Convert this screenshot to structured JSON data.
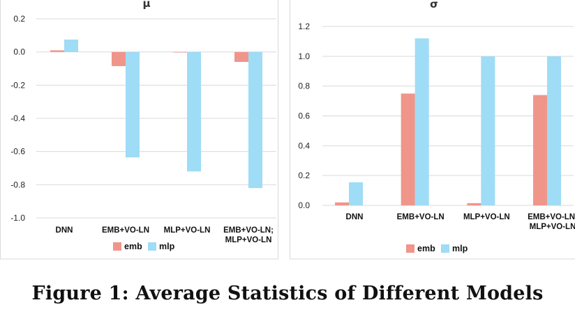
{
  "caption": "Figure 1: Average Statistics of Different Models",
  "colors": {
    "emb": "#f0958a",
    "mlp": "#9fdcf6"
  },
  "chart_data": [
    {
      "type": "bar",
      "title": "μ",
      "categories": [
        "DNN",
        "EMB+VO-LN",
        "MLP+VO-LN",
        "EMB+VO-LN;\nMLP+VO-LN"
      ],
      "series": [
        {
          "name": "emb",
          "values": [
            0.01,
            -0.085,
            0.0,
            -0.06
          ]
        },
        {
          "name": "mlp",
          "values": [
            0.075,
            -0.635,
            -0.72,
            -0.82
          ]
        }
      ],
      "ylim": [
        -1.0,
        0.2
      ],
      "yticks": [
        0.2,
        0.0,
        -0.2,
        -0.4,
        -0.6,
        -0.8,
        -1.0
      ],
      "ytick_labels": [
        "0.2",
        "0.0",
        "-0.2",
        "-0.4",
        "-0.6",
        "-0.8",
        "-1.0"
      ],
      "grid": true,
      "legend": "bottom"
    },
    {
      "type": "bar",
      "title": "σ",
      "categories": [
        "DNN",
        "EMB+VO-LN",
        "MLP+VO-LN",
        "EMB+VO-LN;\nMLP+VO-LN"
      ],
      "series": [
        {
          "name": "emb",
          "values": [
            0.02,
            0.75,
            0.015,
            0.74
          ]
        },
        {
          "name": "mlp",
          "values": [
            0.155,
            1.12,
            1.0,
            1.0
          ]
        }
      ],
      "ylim": [
        0.0,
        1.2
      ],
      "yticks": [
        1.2,
        1.0,
        0.8,
        0.6,
        0.4,
        0.2,
        0.0
      ],
      "ytick_labels": [
        "1.2",
        "1.0",
        "0.8",
        "0.6",
        "0.4",
        "0.2",
        "0.0"
      ],
      "grid": true,
      "legend": "bottom"
    }
  ]
}
